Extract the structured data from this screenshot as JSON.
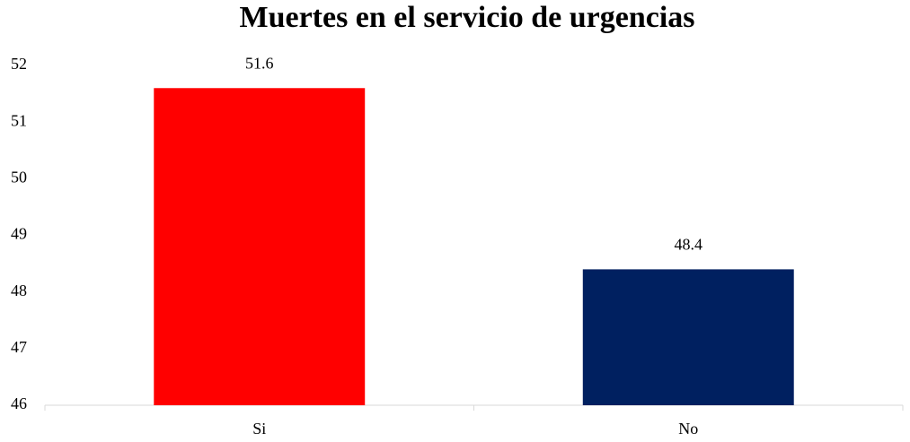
{
  "chart_data": {
    "type": "bar",
    "title": "Muertes en el servicio de urgencias",
    "categories": [
      "Si",
      "No"
    ],
    "values": [
      51.6,
      48.4
    ],
    "colors": [
      "#ff0000",
      "#002060"
    ],
    "ylim": [
      46,
      52
    ],
    "yticks": [
      46,
      47,
      48,
      49,
      50,
      51,
      52
    ],
    "grid": false
  }
}
